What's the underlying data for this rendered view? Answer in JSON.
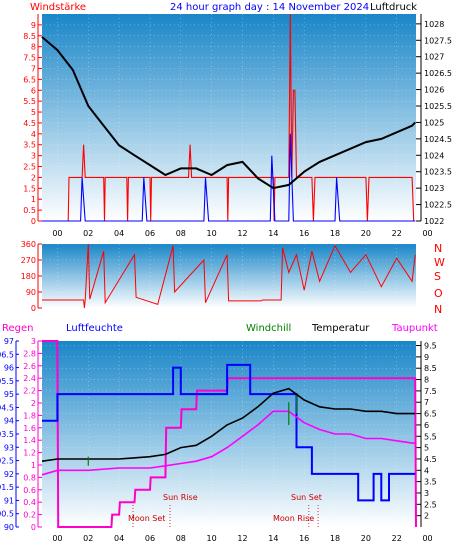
{
  "header": {
    "left_label": "Windstärke",
    "title": "24 hour graph day : 14 November 2024",
    "right_label": "Luftdruck"
  },
  "bottom_header": {
    "rain": "Regen",
    "humidity": "Luftfeuchte",
    "windchill": "Windchill",
    "temperature": "Temperatur",
    "dewpoint": "Taupunkt"
  },
  "compass": [
    "N",
    "W",
    "S",
    "O",
    "N"
  ],
  "annotations": {
    "moon_set": "Moon Set",
    "sun_rise": "Sun Rise",
    "sun_set": "Sun Set",
    "moon_rise": "Moon Rise"
  },
  "colors": {
    "wind": "#ff0000",
    "gust": "#0000ff",
    "pressure": "#000000",
    "rain": "#ff00cc",
    "humidity": "#0000ff",
    "windchill": "#008000",
    "temperature": "#000000",
    "dewpoint": "#ff00ff",
    "sky_top": "#1a86c8",
    "sky_bottom": "#ffffff"
  },
  "chart_data": [
    {
      "type": "line",
      "name": "wind_pressure",
      "x_ticks": [
        "00",
        "02",
        "04",
        "06",
        "08",
        "10",
        "12",
        "14",
        "16",
        "18",
        "20",
        "22",
        "00"
      ],
      "left_axis": {
        "ylim": [
          0,
          9.5
        ],
        "ticks": [
          "0",
          "0.5",
          "1",
          "1.5",
          "2",
          "2.5",
          "3",
          "3.5",
          "4",
          "4.5",
          "5",
          "5.5",
          "6",
          "6.5",
          "7",
          "7.5",
          "8",
          "8.5",
          "9"
        ]
      },
      "right_axis": {
        "ylim": [
          1022,
          1028.3
        ],
        "ticks": [
          "1022",
          "1022.5",
          "1023",
          "1023.5",
          "1024",
          "1024.5",
          "1025",
          "1025.5",
          "1026",
          "1026.5",
          "1027",
          "1027.5",
          "1028"
        ]
      },
      "pressure": [
        [
          -1,
          1027.6
        ],
        [
          0,
          1027.2
        ],
        [
          1,
          1026.6
        ],
        [
          2,
          1025.5
        ],
        [
          3,
          1024.9
        ],
        [
          4,
          1024.3
        ],
        [
          5,
          1024.0
        ],
        [
          6,
          1023.7
        ],
        [
          7,
          1023.4
        ],
        [
          8,
          1023.6
        ],
        [
          9,
          1023.6
        ],
        [
          10,
          1023.4
        ],
        [
          11,
          1023.7
        ],
        [
          12,
          1023.8
        ],
        [
          13,
          1023.3
        ],
        [
          14,
          1023.0
        ],
        [
          15,
          1023.1
        ],
        [
          16,
          1023.5
        ],
        [
          17,
          1023.8
        ],
        [
          18,
          1024.0
        ],
        [
          19,
          1024.2
        ],
        [
          20,
          1024.4
        ],
        [
          21,
          1024.5
        ],
        [
          22,
          1024.7
        ],
        [
          23,
          1024.9
        ],
        [
          23.2,
          1025.0
        ]
      ],
      "wind": [
        [
          -1,
          0
        ],
        [
          0.7,
          0
        ],
        [
          0.75,
          2
        ],
        [
          1.6,
          2
        ],
        [
          1.7,
          3.5
        ],
        [
          1.8,
          2
        ],
        [
          3.0,
          2
        ],
        [
          3.05,
          0
        ],
        [
          3.1,
          2
        ],
        [
          4.5,
          2
        ],
        [
          4.55,
          0
        ],
        [
          4.6,
          2
        ],
        [
          6.0,
          2
        ],
        [
          6.05,
          0
        ],
        [
          6.1,
          2
        ],
        [
          8.5,
          2
        ],
        [
          8.6,
          3.5
        ],
        [
          8.7,
          2
        ],
        [
          11.0,
          2
        ],
        [
          11.05,
          0
        ],
        [
          11.1,
          2
        ],
        [
          14.0,
          2
        ],
        [
          14.05,
          0
        ],
        [
          14.1,
          2
        ],
        [
          15.0,
          2
        ],
        [
          15.1,
          9.5
        ],
        [
          15.2,
          2
        ],
        [
          15.3,
          6
        ],
        [
          15.4,
          6
        ],
        [
          15.5,
          2
        ],
        [
          16.5,
          2
        ],
        [
          16.6,
          0
        ],
        [
          16.7,
          2
        ],
        [
          20.0,
          2
        ],
        [
          20.1,
          0
        ],
        [
          20.2,
          2
        ],
        [
          23.0,
          2
        ],
        [
          23.1,
          0
        ],
        [
          23.2,
          0
        ]
      ],
      "gust": [
        [
          -1,
          0
        ],
        [
          1.5,
          0
        ],
        [
          1.6,
          2
        ],
        [
          1.8,
          0
        ],
        [
          5.5,
          0
        ],
        [
          5.6,
          2
        ],
        [
          5.8,
          0
        ],
        [
          9.5,
          0
        ],
        [
          9.6,
          2
        ],
        [
          9.8,
          0
        ],
        [
          13.8,
          0
        ],
        [
          13.9,
          3
        ],
        [
          14.1,
          0
        ],
        [
          15.0,
          0
        ],
        [
          15.1,
          4
        ],
        [
          15.3,
          0
        ],
        [
          18.0,
          0
        ],
        [
          18.1,
          2
        ],
        [
          18.3,
          0
        ],
        [
          23.2,
          0
        ]
      ]
    },
    {
      "type": "line",
      "name": "wind_direction",
      "ylim": [
        0,
        360
      ],
      "y_ticks": [
        "0",
        "90",
        "180",
        "270",
        "360"
      ],
      "direction": [
        [
          -1,
          45
        ],
        [
          1.7,
          45
        ],
        [
          1.75,
          0
        ],
        [
          1.8,
          45
        ],
        [
          2.0,
          360
        ],
        [
          2.1,
          50
        ],
        [
          3.0,
          320
        ],
        [
          3.1,
          30
        ],
        [
          5.0,
          300
        ],
        [
          5.1,
          60
        ],
        [
          6.5,
          20
        ],
        [
          7.5,
          350
        ],
        [
          7.6,
          90
        ],
        [
          9.5,
          270
        ],
        [
          9.6,
          30
        ],
        [
          11.0,
          300
        ],
        [
          11.1,
          40
        ],
        [
          13.2,
          40
        ],
        [
          13.3,
          45
        ],
        [
          14.5,
          45
        ],
        [
          14.6,
          340
        ],
        [
          15.0,
          200
        ],
        [
          15.5,
          300
        ],
        [
          16.0,
          100
        ],
        [
          16.5,
          320
        ],
        [
          17.0,
          150
        ],
        [
          18.0,
          350
        ],
        [
          19.0,
          200
        ],
        [
          20.0,
          300
        ],
        [
          21.0,
          120
        ],
        [
          22.0,
          280
        ],
        [
          23.0,
          150
        ],
        [
          23.2,
          300
        ]
      ]
    },
    {
      "type": "line",
      "name": "temp_humidity",
      "left_rain_axis": {
        "ylim": [
          0,
          3
        ],
        "ticks": [
          "0",
          "0.2",
          "0.4",
          "0.6",
          "0.8",
          "1",
          "1.2",
          "1.4",
          "1.6",
          "1.8",
          "2",
          "2.2",
          "2.4",
          "2.6",
          "2.8",
          "3"
        ]
      },
      "left_humidity_axis": {
        "ylim": [
          90,
          97
        ],
        "ticks": [
          "90",
          "90.5",
          "91",
          "91.5",
          "92",
          "92.5",
          "93",
          "93.5",
          "94",
          "94.5",
          "95",
          "95.5",
          "96",
          "96.5",
          "97"
        ]
      },
      "right_temp_axis": {
        "ylim": [
          1.5,
          9.7
        ],
        "ticks": [
          "2",
          "2.5",
          "3",
          "3.5",
          "4",
          "4.5",
          "5",
          "5.5",
          "6",
          "6.5",
          "7",
          "7.5",
          "8",
          "8.5",
          "9",
          "9.5"
        ]
      },
      "rain": [
        [
          -1,
          3
        ],
        [
          0,
          3
        ],
        [
          0.05,
          0
        ],
        [
          3.5,
          0
        ],
        [
          3.55,
          0.2
        ],
        [
          4.0,
          0.2
        ],
        [
          4.05,
          0.4
        ],
        [
          5.0,
          0.4
        ],
        [
          5.05,
          0.6
        ],
        [
          6.0,
          0.6
        ],
        [
          6.05,
          0.8
        ],
        [
          7.0,
          0.8
        ],
        [
          7.05,
          1.6
        ],
        [
          8.0,
          1.6
        ],
        [
          8.05,
          1.9
        ],
        [
          9.0,
          1.9
        ],
        [
          9.05,
          2.2
        ],
        [
          11.0,
          2.2
        ],
        [
          11.05,
          2.4
        ],
        [
          23.2,
          2.4
        ],
        [
          23.25,
          0
        ]
      ],
      "humidity": [
        [
          -1,
          94
        ],
        [
          0,
          94
        ],
        [
          0,
          95
        ],
        [
          7.5,
          95
        ],
        [
          7.5,
          96
        ],
        [
          8.0,
          96
        ],
        [
          8.0,
          95
        ],
        [
          11.0,
          95
        ],
        [
          11.0,
          96.1
        ],
        [
          11.3,
          96.1
        ],
        [
          11.3,
          96.1
        ],
        [
          12.5,
          96.1
        ],
        [
          12.5,
          95
        ],
        [
          15.5,
          95
        ],
        [
          15.5,
          93
        ],
        [
          16.5,
          93
        ],
        [
          16.5,
          92
        ],
        [
          19.5,
          92
        ],
        [
          19.5,
          91
        ],
        [
          20.5,
          91
        ],
        [
          20.5,
          92
        ],
        [
          21.0,
          92
        ],
        [
          21.0,
          91
        ],
        [
          21.5,
          91
        ],
        [
          21.5,
          92
        ],
        [
          23.2,
          92
        ]
      ],
      "temperature": [
        [
          -1,
          4.4
        ],
        [
          0,
          4.5
        ],
        [
          2,
          4.5
        ],
        [
          4,
          4.5
        ],
        [
          6,
          4.6
        ],
        [
          7,
          4.7
        ],
        [
          8,
          5.0
        ],
        [
          9,
          5.1
        ],
        [
          10,
          5.5
        ],
        [
          11,
          6.0
        ],
        [
          12,
          6.3
        ],
        [
          13,
          6.8
        ],
        [
          14,
          7.4
        ],
        [
          15,
          7.6
        ],
        [
          16,
          7.1
        ],
        [
          17,
          6.8
        ],
        [
          18,
          6.7
        ],
        [
          19,
          6.7
        ],
        [
          20,
          6.6
        ],
        [
          21,
          6.6
        ],
        [
          22,
          6.5
        ],
        [
          23,
          6.5
        ],
        [
          23.2,
          6.5
        ]
      ],
      "dewpoint": [
        [
          -1,
          3.8
        ],
        [
          0,
          4.0
        ],
        [
          2,
          4.0
        ],
        [
          4,
          4.1
        ],
        [
          6,
          4.1
        ],
        [
          7,
          4.2
        ],
        [
          8,
          4.3
        ],
        [
          9,
          4.4
        ],
        [
          10,
          4.6
        ],
        [
          11,
          5.0
        ],
        [
          12,
          5.5
        ],
        [
          13,
          6.0
        ],
        [
          14,
          6.6
        ],
        [
          15,
          6.6
        ],
        [
          16,
          6.1
        ],
        [
          17,
          5.8
        ],
        [
          18,
          5.6
        ],
        [
          19,
          5.6
        ],
        [
          20,
          5.4
        ],
        [
          21,
          5.4
        ],
        [
          22,
          5.3
        ],
        [
          23,
          5.2
        ],
        [
          23.2,
          5.2
        ]
      ],
      "windchill": [
        [
          2,
          4.2
        ],
        [
          2,
          4.6
        ],
        [
          15,
          6.0
        ],
        [
          15,
          7.0
        ],
        [
          15.5,
          6.5
        ],
        [
          15.5,
          7.3
        ]
      ],
      "events": [
        {
          "key": "moon_set",
          "hour": 4.9
        },
        {
          "key": "sun_rise",
          "hour": 7.3
        },
        {
          "key": "sun_set",
          "hour": 16.3
        },
        {
          "key": "moon_rise",
          "hour": 16.9
        }
      ]
    }
  ]
}
